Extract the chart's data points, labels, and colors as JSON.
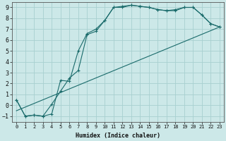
{
  "xlabel": "Humidex (Indice chaleur)",
  "bg_color": "#cce8e8",
  "grid_color": "#a8d0d0",
  "line_color": "#1a6b6b",
  "xlim": [
    -0.5,
    23.5
  ],
  "ylim": [
    -1.5,
    9.5
  ],
  "xticks": [
    0,
    1,
    2,
    3,
    4,
    5,
    6,
    7,
    8,
    9,
    10,
    11,
    12,
    13,
    14,
    15,
    16,
    17,
    18,
    19,
    20,
    21,
    22,
    23
  ],
  "yticks": [
    -1,
    0,
    1,
    2,
    3,
    4,
    5,
    6,
    7,
    8,
    9
  ],
  "line1_x": [
    0,
    1,
    2,
    3,
    4,
    5,
    6,
    7,
    8,
    9,
    10,
    11,
    12,
    13,
    14,
    15,
    16,
    17,
    18,
    19,
    20,
    21,
    22,
    23
  ],
  "line1_y": [
    0.5,
    -1.0,
    -0.9,
    -1.0,
    -0.8,
    2.3,
    2.2,
    5.0,
    6.6,
    7.0,
    7.8,
    9.0,
    9.1,
    9.2,
    9.1,
    9.0,
    8.8,
    8.7,
    8.7,
    9.0,
    9.0,
    8.3,
    7.5,
    7.2
  ],
  "line2_x": [
    0,
    1,
    2,
    3,
    4,
    5,
    6,
    7,
    8,
    9,
    10,
    11,
    12,
    13,
    14,
    15,
    16,
    17,
    18,
    19,
    20,
    21,
    22,
    23
  ],
  "line2_y": [
    0.5,
    -1.0,
    -0.9,
    -1.0,
    0.1,
    1.3,
    2.5,
    3.2,
    6.5,
    6.8,
    7.8,
    9.0,
    9.0,
    9.2,
    9.1,
    9.0,
    8.8,
    8.7,
    8.8,
    9.0,
    9.0,
    8.3,
    7.5,
    7.2
  ],
  "line3_x": [
    0,
    23
  ],
  "line3_y": [
    -0.5,
    7.2
  ],
  "figsize": [
    3.2,
    2.0
  ],
  "dpi": 100
}
